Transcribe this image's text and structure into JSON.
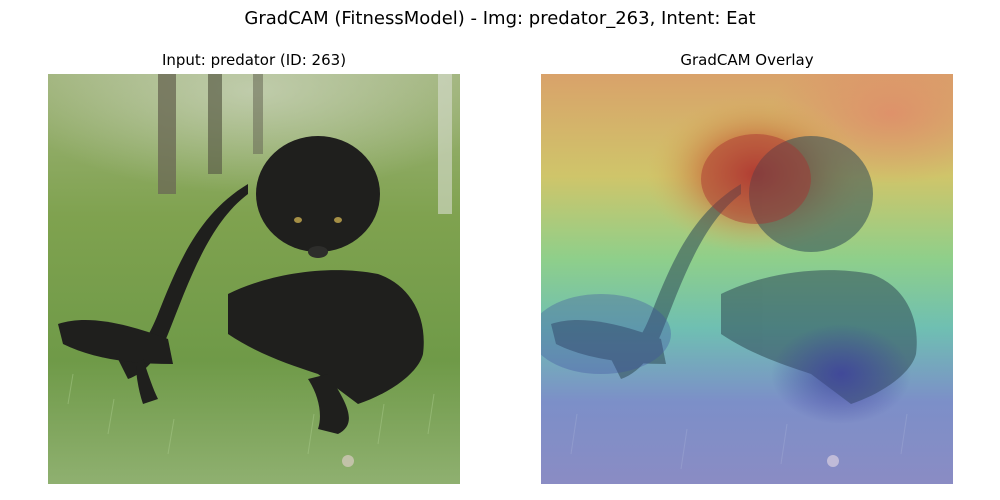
{
  "figure": {
    "suptitle": "GradCAM (FitnessModel) - Img: predator_263, Intent: Eat"
  },
  "panels": {
    "left": {
      "title": "Input: predator (ID: 263)"
    },
    "right": {
      "title": "GradCAM Overlay"
    }
  }
}
